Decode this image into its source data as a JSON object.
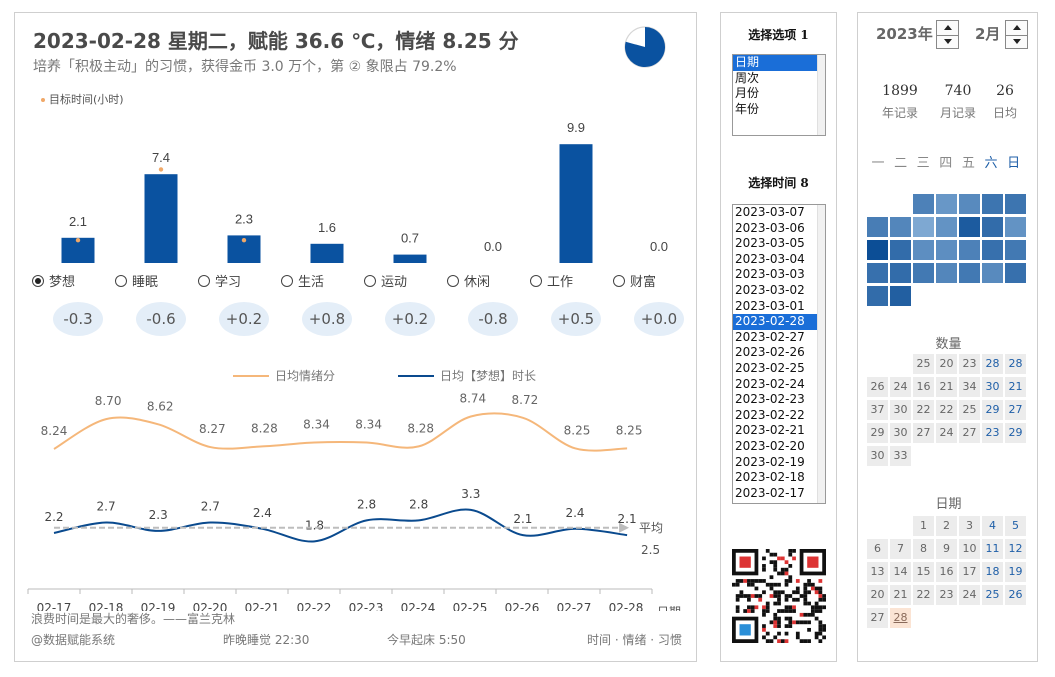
{
  "header": {
    "title": "2023-02-28 星期二，赋能 36.6 ℃，情绪 8.25 分",
    "subtitle": "培养「积极主动」的习惯，获得金币 3.0 万个，第 ② 象限占 79.2%",
    "pie_fraction": 0.792
  },
  "target_legend": "目标时间(小时)",
  "categories": [
    {
      "label": "梦想",
      "value": "2.1",
      "score": "-0.3",
      "checked": true
    },
    {
      "label": "睡眠",
      "value": "7.4",
      "score": "-0.6",
      "checked": false
    },
    {
      "label": "学习",
      "value": "2.3",
      "score": "+0.2",
      "checked": false
    },
    {
      "label": "生活",
      "value": "1.6",
      "score": "+0.8",
      "checked": false
    },
    {
      "label": "运动",
      "value": "0.7",
      "score": "+0.2",
      "checked": false
    },
    {
      "label": "休闲",
      "value": "0.0",
      "score": "-0.8",
      "checked": false
    },
    {
      "label": "工作",
      "value": "9.9",
      "score": "+0.5",
      "checked": false
    },
    {
      "label": "财富",
      "value": "0.0",
      "score": "+0.0",
      "checked": false
    }
  ],
  "line_chart": {
    "legend_mood": "日均情绪分",
    "legend_dream": "日均【梦想】时长",
    "avg_label": "平均",
    "avg_value": "2.5",
    "x_axis_label": "日期",
    "dates": [
      "02-17",
      "02-18",
      "02-19",
      "02-20",
      "02-21",
      "02-22",
      "02-23",
      "02-24",
      "02-25",
      "02-26",
      "02-27",
      "02-28"
    ],
    "mood": [
      "8.24",
      "8.70",
      "8.62",
      "8.27",
      "8.28",
      "8.34",
      "8.34",
      "8.28",
      "8.74",
      "8.72",
      "8.25",
      "8.25"
    ],
    "dream": [
      "2.2",
      "2.7",
      "2.3",
      "2.7",
      "2.4",
      "1.8",
      "2.8",
      "2.8",
      "3.3",
      "2.1",
      "2.4",
      "2.1"
    ]
  },
  "colors": {
    "bar": "#0a52a0",
    "mood_line": "#f5b77a",
    "dream_line": "#0a4a8e",
    "avg_line": "#bdbdbd",
    "target_dot": "#f0a868"
  },
  "footer": {
    "quote": "浪费时间是最大的奢侈。——富兰克林",
    "brand": "@数据赋能系统",
    "sleep": "昨晚睡觉 22:30",
    "wake": "今早起床 5:50",
    "tags": "时间 · 情绪 · 习惯"
  },
  "selector": {
    "option_heading": "选择选项 1",
    "options": [
      "日期",
      "周次",
      "月份",
      "年份"
    ],
    "option_selected": 0,
    "time_heading": "选择时间 8",
    "times": [
      "2023-03-07",
      "2023-03-06",
      "2023-03-05",
      "2023-03-04",
      "2023-03-03",
      "2023-03-02",
      "2023-03-01",
      "2023-02-28",
      "2023-02-27",
      "2023-02-26",
      "2023-02-25",
      "2023-02-24",
      "2023-02-23",
      "2023-02-22",
      "2023-02-21",
      "2023-02-20",
      "2023-02-19",
      "2023-02-18",
      "2023-02-17"
    ],
    "time_selected": 7
  },
  "calendar": {
    "year_label": "2023年",
    "month_label": "2月",
    "stats": [
      {
        "value": "1899",
        "label": "年记录"
      },
      {
        "value": "740",
        "label": "月记录"
      },
      {
        "value": "26",
        "label": "日均"
      }
    ],
    "weekdays": [
      "一",
      "二",
      "三",
      "四",
      "五",
      "六",
      "日"
    ],
    "quantity_title": "数量",
    "quantity_grid": [
      [
        "",
        "",
        "25",
        "20",
        "23",
        "28",
        "28"
      ],
      [
        "26",
        "24",
        "16",
        "21",
        "34",
        "30",
        "21"
      ],
      [
        "37",
        "30",
        "22",
        "22",
        "25",
        "29",
        "27"
      ],
      [
        "29",
        "30",
        "27",
        "24",
        "27",
        "23",
        "29"
      ],
      [
        "30",
        "33",
        "",
        "",
        "",
        "",
        ""
      ]
    ],
    "date_title": "日期",
    "date_grid": [
      [
        "",
        "",
        "1",
        "2",
        "3",
        "4",
        "5"
      ],
      [
        "6",
        "7",
        "8",
        "9",
        "10",
        "11",
        "12"
      ],
      [
        "13",
        "14",
        "15",
        "16",
        "17",
        "18",
        "19"
      ],
      [
        "20",
        "21",
        "22",
        "23",
        "24",
        "25",
        "26"
      ],
      [
        "27",
        "28",
        "",
        "",
        "",
        "",
        ""
      ]
    ],
    "today": "28"
  }
}
